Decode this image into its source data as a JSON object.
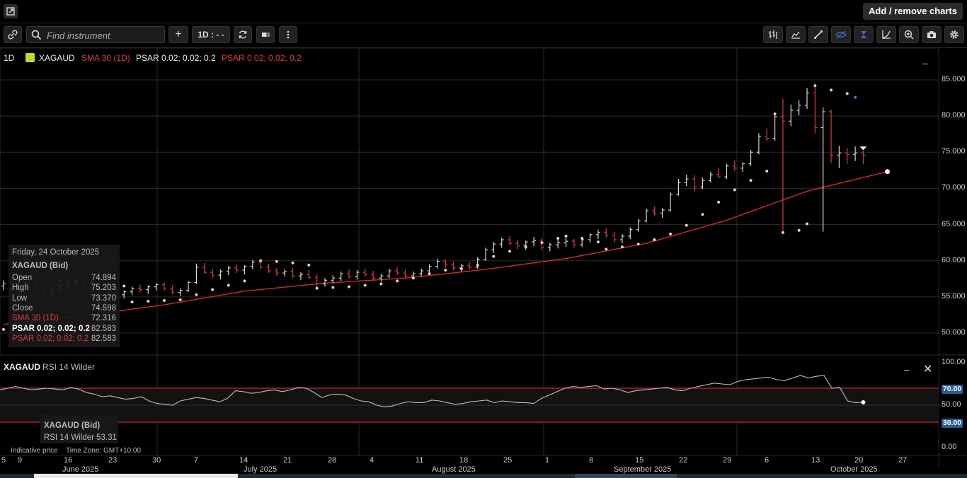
{
  "topbar": {
    "add_remove_label": "Add / remove charts"
  },
  "toolbar": {
    "search_placeholder": "Find instrument",
    "interval_label": "1D : - -"
  },
  "legend": {
    "interval": "1D",
    "symbol": "XAGAUD",
    "sma": "SMA 30 (1D)",
    "psar1": "PSAR 0.02; 0.02; 0.2",
    "psar2": "PSAR 0.02; 0.02; 0.2"
  },
  "info_panel": {
    "date": "Friday, 24 October 2025",
    "title": "XAGAUD (Bid)",
    "rows": [
      {
        "k": "Open",
        "v": "74.894"
      },
      {
        "k": "High",
        "v": "75.203"
      },
      {
        "k": "Low",
        "v": "73.370"
      },
      {
        "k": "Close",
        "v": "74.598"
      },
      {
        "k": "SMA 30 (1D)",
        "v": "72.316"
      },
      {
        "k": "PSAR 0.02; 0.02; 0.2",
        "v": "82.583"
      },
      {
        "k": "PSAR 0.02; 0.02; 0.2",
        "v": "82.583"
      }
    ]
  },
  "price_axis": [
    "85.000",
    "80.000",
    "75.000",
    "70.000",
    "65.000",
    "60.000",
    "55.000",
    "50.000"
  ],
  "rsi": {
    "symbol": "XAGAUD",
    "label": "RSI 14 Wilder",
    "panel_title": "XAGAUD (Bid)",
    "panel_value": "RSI 14 Wilder 53.31",
    "axis": [
      "100.00",
      "70.00",
      "50.00",
      "30.00",
      "0.00"
    ],
    "band_upper": "70.00",
    "band_lower": "30.00"
  },
  "footer": {
    "indicative": "Indicative price",
    "timezone": "Time Zone: GMT+10:00"
  },
  "x_days": [
    "5",
    "9",
    "16",
    "23",
    "30",
    "7",
    "14",
    "21",
    "28",
    "4",
    "11",
    "18",
    "25",
    "1",
    "8",
    "15",
    "22",
    "29",
    "6",
    "13",
    "20",
    "27"
  ],
  "x_months": [
    "June 2025",
    "July 2025",
    "August 2025",
    "September 2025",
    "October 2025"
  ],
  "colors": {
    "up": "#d8d8d8",
    "down": "#e0393b",
    "sma": "#d42a2a",
    "psar": "#f0c8c8",
    "accent": "#2a5c9a"
  },
  "chart_data": {
    "type": "ohlc",
    "symbol": "XAGAUD",
    "interval": "1D",
    "ylim": [
      48,
      88
    ],
    "ohlc": [
      [
        56.5,
        57.3,
        55.9,
        56.8
      ],
      [
        56.8,
        57.0,
        55.6,
        55.9
      ],
      [
        55.9,
        56.4,
        55.2,
        56.2
      ],
      [
        56.2,
        57.1,
        55.8,
        56.9
      ],
      [
        56.9,
        57.4,
        56.1,
        56.3
      ],
      [
        56.3,
        56.6,
        55.3,
        55.7
      ],
      [
        55.7,
        56.3,
        55.2,
        56.0
      ],
      [
        56.0,
        56.8,
        55.6,
        56.5
      ],
      [
        56.5,
        57.2,
        56.0,
        56.9
      ],
      [
        56.9,
        57.5,
        56.4,
        57.1
      ],
      [
        57.1,
        57.6,
        56.3,
        56.6
      ],
      [
        56.6,
        56.9,
        55.5,
        55.8
      ],
      [
        55.8,
        56.2,
        54.9,
        55.2
      ],
      [
        55.2,
        55.8,
        54.6,
        55.6
      ],
      [
        55.6,
        56.1,
        54.9,
        55.3
      ],
      [
        55.3,
        55.9,
        54.8,
        55.7
      ],
      [
        55.7,
        56.4,
        55.3,
        56.2
      ],
      [
        56.2,
        56.7,
        55.6,
        56.0
      ],
      [
        56.0,
        56.6,
        55.4,
        56.4
      ],
      [
        56.4,
        56.9,
        55.9,
        56.7
      ],
      [
        56.7,
        57.0,
        55.9,
        56.1
      ],
      [
        56.1,
        56.6,
        55.4,
        55.6
      ],
      [
        55.6,
        56.2,
        55.1,
        55.9
      ],
      [
        55.9,
        57.2,
        55.7,
        57.0
      ],
      [
        57.0,
        59.6,
        56.8,
        59.1
      ],
      [
        59.1,
        59.7,
        58.2,
        58.4
      ],
      [
        58.4,
        58.9,
        57.6,
        58.0
      ],
      [
        58.0,
        58.8,
        57.4,
        58.5
      ],
      [
        58.5,
        59.3,
        58.0,
        59.0
      ],
      [
        59.0,
        59.5,
        58.3,
        58.7
      ],
      [
        58.7,
        59.4,
        58.1,
        59.2
      ],
      [
        59.2,
        60.1,
        58.8,
        59.8
      ],
      [
        59.8,
        60.2,
        58.9,
        59.1
      ],
      [
        59.1,
        59.6,
        58.3,
        58.6
      ],
      [
        58.6,
        59.0,
        57.9,
        58.3
      ],
      [
        58.3,
        58.8,
        57.8,
        58.5
      ],
      [
        58.5,
        59.0,
        57.6,
        57.9
      ],
      [
        57.9,
        58.4,
        57.3,
        58.1
      ],
      [
        58.1,
        58.7,
        57.5,
        57.7
      ],
      [
        57.7,
        58.1,
        56.2,
        56.8
      ],
      [
        56.8,
        57.6,
        56.4,
        57.3
      ],
      [
        57.3,
        58.0,
        56.9,
        57.6
      ],
      [
        57.6,
        58.5,
        57.2,
        58.2
      ],
      [
        58.2,
        58.8,
        57.5,
        57.8
      ],
      [
        57.8,
        58.7,
        57.4,
        58.4
      ],
      [
        58.4,
        58.9,
        57.8,
        58.1
      ],
      [
        58.1,
        58.6,
        57.3,
        57.6
      ],
      [
        57.6,
        58.2,
        57.1,
        57.9
      ],
      [
        57.9,
        58.9,
        57.6,
        58.6
      ],
      [
        58.6,
        59.1,
        58.0,
        58.3
      ],
      [
        58.3,
        58.8,
        57.6,
        57.9
      ],
      [
        57.9,
        58.5,
        57.4,
        58.2
      ],
      [
        58.2,
        58.9,
        57.8,
        58.6
      ],
      [
        58.6,
        59.5,
        58.2,
        59.2
      ],
      [
        59.2,
        60.3,
        58.9,
        59.9
      ],
      [
        59.9,
        60.2,
        59.0,
        59.4
      ],
      [
        59.4,
        59.9,
        58.7,
        59.0
      ],
      [
        59.0,
        59.6,
        58.5,
        59.3
      ],
      [
        59.3,
        59.8,
        58.8,
        59.1
      ],
      [
        59.1,
        60.5,
        58.9,
        60.2
      ],
      [
        60.2,
        61.8,
        60.0,
        61.5
      ],
      [
        61.5,
        62.6,
        61.1,
        62.3
      ],
      [
        62.3,
        63.2,
        61.8,
        62.9
      ],
      [
        62.9,
        63.4,
        62.1,
        62.4
      ],
      [
        62.4,
        62.9,
        61.6,
        62.1
      ],
      [
        62.1,
        62.8,
        61.5,
        62.6
      ],
      [
        62.6,
        63.3,
        62.0,
        62.8
      ],
      [
        62.8,
        63.1,
        61.4,
        61.8
      ],
      [
        61.8,
        62.5,
        61.3,
        62.2
      ],
      [
        62.2,
        62.9,
        61.7,
        62.5
      ],
      [
        62.5,
        63.2,
        61.9,
        62.7
      ],
      [
        62.7,
        63.0,
        61.8,
        62.2
      ],
      [
        62.2,
        63.1,
        61.9,
        62.9
      ],
      [
        62.9,
        63.8,
        62.5,
        63.6
      ],
      [
        63.6,
        64.3,
        63.0,
        63.9
      ],
      [
        63.9,
        64.5,
        63.2,
        63.5
      ],
      [
        63.5,
        64.0,
        62.5,
        62.9
      ],
      [
        62.9,
        63.7,
        62.4,
        63.4
      ],
      [
        63.4,
        64.6,
        63.0,
        64.3
      ],
      [
        64.3,
        65.8,
        64.0,
        65.5
      ],
      [
        65.5,
        67.2,
        65.3,
        66.9
      ],
      [
        66.9,
        67.5,
        66.2,
        66.6
      ],
      [
        66.6,
        67.3,
        65.9,
        67.0
      ],
      [
        67.0,
        69.5,
        66.8,
        69.2
      ],
      [
        69.2,
        71.3,
        69.0,
        70.8
      ],
      [
        70.8,
        71.9,
        70.3,
        71.3
      ],
      [
        71.3,
        71.8,
        69.6,
        70.2
      ],
      [
        70.2,
        71.5,
        69.9,
        71.1
      ],
      [
        71.1,
        72.3,
        70.8,
        71.9
      ],
      [
        71.9,
        72.8,
        71.4,
        71.6
      ],
      [
        71.6,
        73.4,
        71.3,
        73.1
      ],
      [
        73.1,
        73.9,
        72.4,
        72.8
      ],
      [
        72.8,
        73.6,
        72.3,
        73.4
      ],
      [
        73.4,
        75.3,
        73.1,
        75.0
      ],
      [
        75.0,
        77.6,
        74.7,
        77.2
      ],
      [
        77.2,
        78.3,
        76.5,
        76.9
      ],
      [
        76.9,
        80.3,
        76.6,
        79.9
      ],
      [
        79.9,
        82.4,
        64.0,
        79.3
      ],
      [
        79.3,
        81.6,
        78.6,
        80.8
      ],
      [
        80.8,
        82.2,
        80.1,
        81.5
      ],
      [
        81.5,
        83.9,
        81.0,
        83.2
      ],
      [
        83.2,
        84.1,
        77.6,
        78.4
      ],
      [
        78.4,
        81.2,
        64.0,
        80.6
      ],
      [
        80.6,
        80.9,
        73.5,
        74.6
      ],
      [
        74.6,
        75.9,
        72.8,
        74.9
      ],
      [
        74.9,
        75.6,
        73.4,
        74.7
      ],
      [
        74.7,
        75.8,
        73.8,
        74.9
      ],
      [
        74.894,
        75.203,
        73.37,
        74.598
      ]
    ],
    "sma30": [
      [
        0,
        51.2
      ],
      [
        10,
        52.4
      ],
      [
        20,
        53.9
      ],
      [
        30,
        55.8
      ],
      [
        40,
        56.9
      ],
      [
        50,
        57.6
      ],
      [
        60,
        58.8
      ],
      [
        70,
        60.3
      ],
      [
        80,
        62.4
      ],
      [
        90,
        65.6
      ],
      [
        100,
        69.6
      ],
      [
        110,
        72.316
      ]
    ],
    "psar": [
      [
        0,
        50.5
      ],
      [
        2,
        51.0
      ],
      [
        4,
        51.8
      ],
      [
        6,
        52.6
      ],
      [
        7,
        57.3
      ],
      [
        9,
        57.2
      ],
      [
        11,
        57.1
      ],
      [
        13,
        56.8
      ],
      [
        15,
        56.5
      ],
      [
        16,
        54.3
      ],
      [
        18,
        54.4
      ],
      [
        20,
        54.5
      ],
      [
        22,
        54.6
      ],
      [
        24,
        55.3
      ],
      [
        26,
        56.0
      ],
      [
        28,
        56.6
      ],
      [
        30,
        57.2
      ],
      [
        32,
        60.0
      ],
      [
        34,
        59.9
      ],
      [
        36,
        59.7
      ],
      [
        38,
        59.4
      ],
      [
        39,
        56.2
      ],
      [
        41,
        56.3
      ],
      [
        43,
        56.4
      ],
      [
        45,
        56.6
      ],
      [
        47,
        56.8
      ],
      [
        49,
        57.2
      ],
      [
        51,
        57.6
      ],
      [
        53,
        58.2
      ],
      [
        55,
        58.7
      ],
      [
        57,
        58.9
      ],
      [
        59,
        59.4
      ],
      [
        61,
        60.6
      ],
      [
        63,
        61.3
      ],
      [
        65,
        61.9
      ],
      [
        67,
        62.5
      ],
      [
        69,
        63.1
      ],
      [
        70,
        63.4
      ],
      [
        72,
        63.1
      ],
      [
        74,
        62.6
      ],
      [
        75,
        61.6
      ],
      [
        77,
        61.9
      ],
      [
        79,
        62.3
      ],
      [
        81,
        62.9
      ],
      [
        83,
        63.7
      ],
      [
        85,
        64.9
      ],
      [
        87,
        66.4
      ],
      [
        89,
        68.1
      ],
      [
        91,
        69.8
      ],
      [
        93,
        71.1
      ],
      [
        95,
        72.4
      ],
      [
        96,
        80.3
      ],
      [
        97,
        63.9
      ],
      [
        99,
        64.2
      ],
      [
        100,
        65.1
      ],
      [
        101,
        84.2
      ],
      [
        103,
        83.6
      ],
      [
        105,
        83.1
      ],
      [
        106,
        82.583
      ]
    ],
    "rsi": [
      68,
      70,
      72,
      70,
      68,
      69,
      70,
      69,
      68,
      71,
      69,
      65,
      63,
      60,
      61,
      59,
      57,
      58,
      60,
      55,
      52,
      51,
      50,
      55,
      57,
      59,
      58,
      56,
      54,
      58,
      67,
      66,
      64,
      65,
      67,
      68,
      66,
      68,
      71,
      70,
      65,
      59,
      62,
      63,
      62,
      58,
      55,
      54,
      50,
      48,
      49,
      52,
      54,
      53,
      53,
      56,
      55,
      53,
      51,
      52,
      54,
      55,
      56,
      53,
      55,
      54,
      53,
      53,
      52,
      58,
      62,
      66,
      70,
      72,
      71,
      72,
      73,
      69,
      70,
      68,
      65,
      67,
      68,
      69,
      70,
      71,
      68,
      67,
      70,
      72,
      74,
      76,
      75,
      74,
      78,
      80,
      81,
      82,
      83,
      80,
      79,
      82,
      85,
      82,
      84,
      85,
      70,
      71,
      55,
      53,
      53.31
    ]
  }
}
